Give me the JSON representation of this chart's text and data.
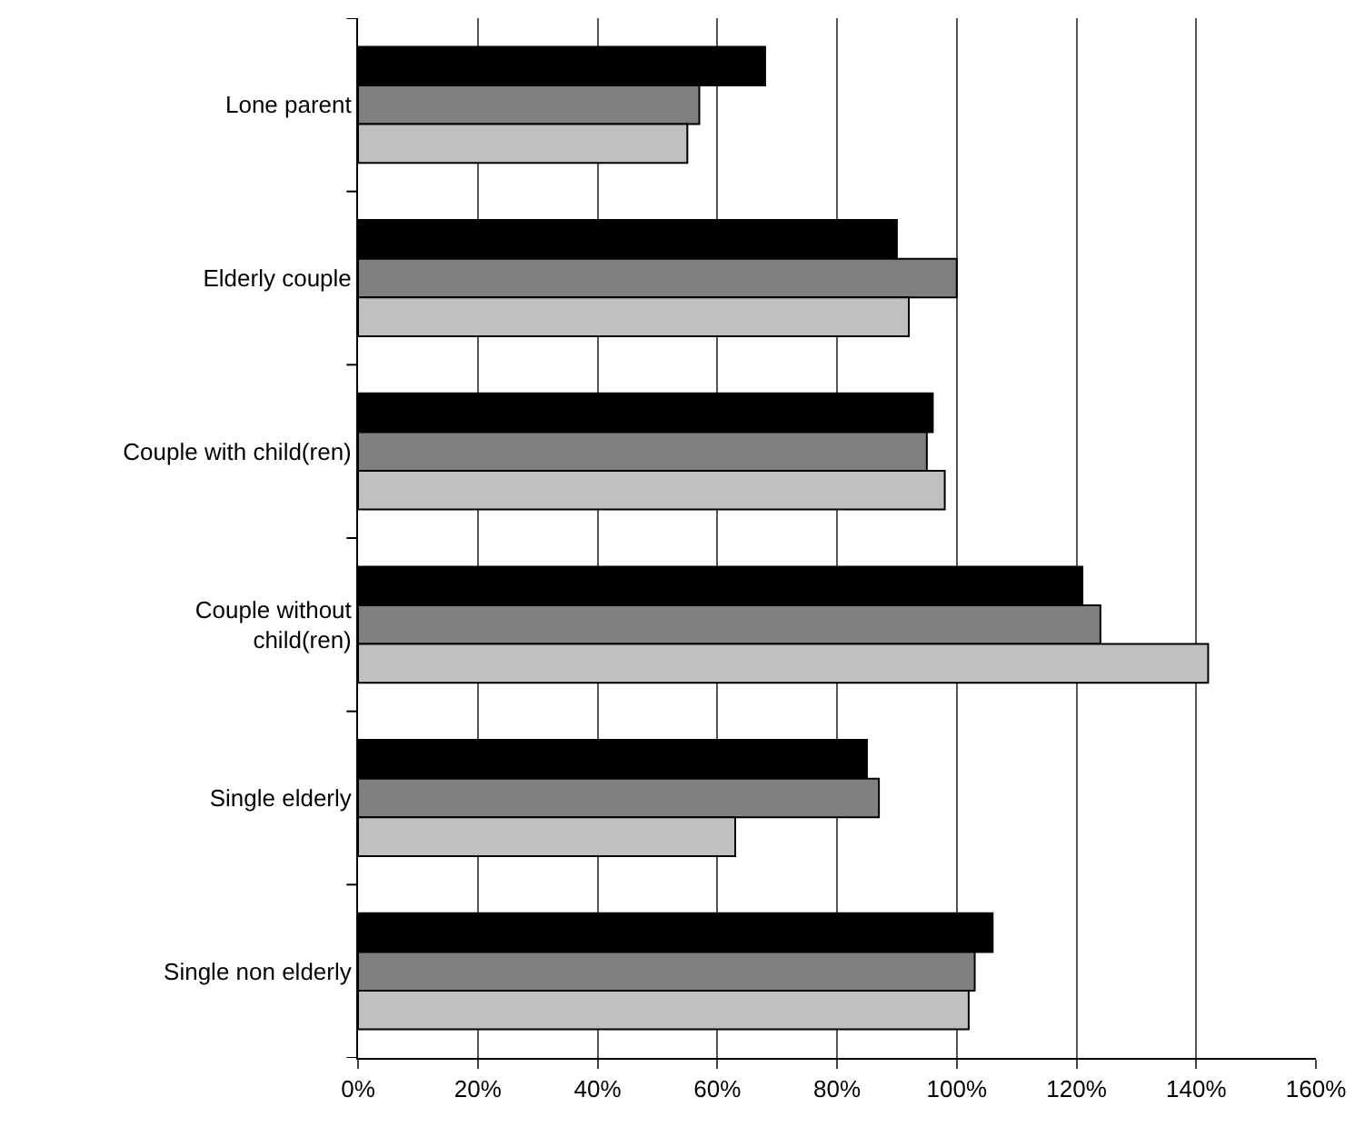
{
  "chart_data": {
    "type": "bar",
    "orientation": "horizontal",
    "categories": [
      "Lone parent",
      "Elderly couple",
      "Couple with child(ren)",
      "Couple without child(ren)",
      "Single elderly",
      "Single non elderly"
    ],
    "series": [
      {
        "color": "#000000",
        "values": [
          68,
          90,
          96,
          121,
          85,
          106
        ]
      },
      {
        "color": "#808080",
        "values": [
          57,
          100,
          95,
          124,
          87,
          103
        ]
      },
      {
        "color": "#c0c0c0",
        "values": [
          55,
          92,
          98,
          142,
          63,
          102
        ]
      }
    ],
    "xlim": [
      0,
      160
    ],
    "xticks": [
      {
        "value": 0,
        "label": "0%"
      },
      {
        "value": 20,
        "label": "20%"
      },
      {
        "value": 40,
        "label": "40%"
      },
      {
        "value": 60,
        "label": "60%"
      },
      {
        "value": 80,
        "label": "80%"
      },
      {
        "value": 100,
        "label": "100%"
      },
      {
        "value": 120,
        "label": "120%"
      },
      {
        "value": 140,
        "label": "140%"
      },
      {
        "value": 160,
        "label": "160%"
      }
    ],
    "grid": "x"
  }
}
